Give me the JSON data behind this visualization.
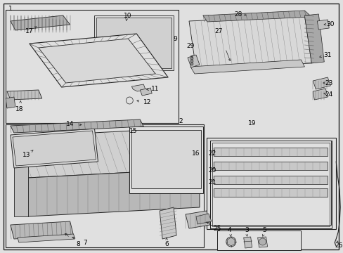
{
  "bg_color": "#e0e0e0",
  "line_color": "#222222",
  "white": "#ffffff",
  "fig_width": 4.89,
  "fig_height": 3.6,
  "dpi": 100
}
